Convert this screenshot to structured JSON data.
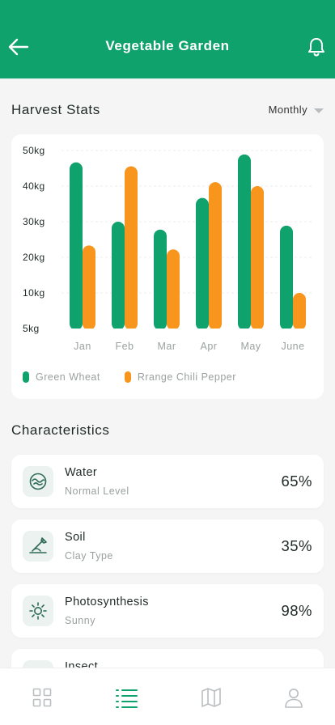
{
  "header": {
    "title": "Vegetable Garden"
  },
  "harvest": {
    "title": "Harvest Stats",
    "range": "Monthly"
  },
  "chart_data": {
    "type": "bar",
    "categories": [
      "Jan",
      "Feb",
      "Mar",
      "Apr",
      "May",
      "June"
    ],
    "series": [
      {
        "name": "Green Wheat",
        "color": "#10a26d",
        "values": [
          47,
          32,
          30,
          38,
          49,
          31
        ]
      },
      {
        "name": "Rrange Chili Pepper",
        "color": "#f7951d",
        "values": [
          26,
          46,
          25,
          42,
          41,
          14
        ]
      }
    ],
    "yticks": [
      "50kg",
      "40kg",
      "30kg",
      "20kg",
      "10kg",
      "5kg"
    ],
    "ylim": [
      5,
      50
    ],
    "grid": true,
    "legend": "bottom-left"
  },
  "characteristics": {
    "title": "Characteristics",
    "items": [
      {
        "name": "Water",
        "sub": "Normal Level",
        "value": "65%",
        "icon": "water-icon"
      },
      {
        "name": "Soil",
        "sub": "Clay Type",
        "value": "35%",
        "icon": "soil-icon"
      },
      {
        "name": "Photosynthesis",
        "sub": "Sunny",
        "value": "98%",
        "icon": "sun-icon"
      },
      {
        "name": "Insect",
        "sub": "",
        "value": "",
        "icon": "insect-icon"
      }
    ]
  },
  "tabs": [
    "grid-icon",
    "list-icon",
    "map-icon",
    "user-icon"
  ],
  "colors": {
    "brand": "#10a26d",
    "accent": "#f7951d",
    "active_tab": "#10a26d",
    "inactive_tab": "#b9bec0"
  }
}
